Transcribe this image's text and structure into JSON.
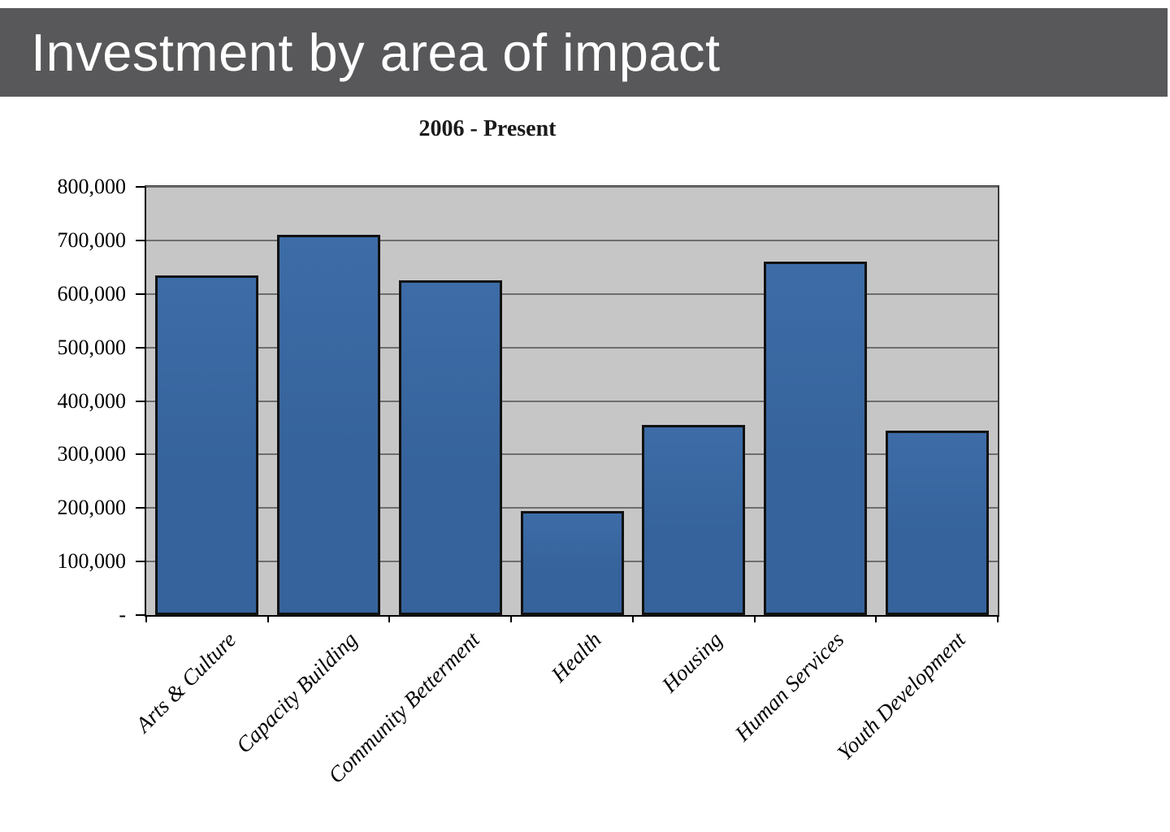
{
  "header": {
    "title": "Investment by area of impact",
    "bg_color": "#58585a",
    "text_color": "#ffffff"
  },
  "chart_data": {
    "type": "bar",
    "title": "2006 - Present",
    "categories": [
      "Arts & Culture",
      "Capacity Building",
      "Community Betterment",
      "Health",
      "Housing",
      "Human Services",
      "Youth Development"
    ],
    "values": [
      635000,
      710000,
      625000,
      195000,
      355000,
      660000,
      345000
    ],
    "xlabel": "",
    "ylabel": "",
    "ylim": [
      0,
      800000
    ],
    "ytick_interval": 100000,
    "ytick_labels_top_to_bottom": [
      "800,000",
      "700,000",
      "600,000",
      "500,000",
      "400,000",
      "300,000",
      "200,000",
      "100,000",
      "-"
    ],
    "grid": true,
    "legend_position": "none",
    "bar_color": "#36639b",
    "bar_color_light": "#3d6ca7",
    "bar_border_color": "#111111",
    "plot_bg_color": "#c6c6c6",
    "gridline_color": "#6e6e6e"
  }
}
